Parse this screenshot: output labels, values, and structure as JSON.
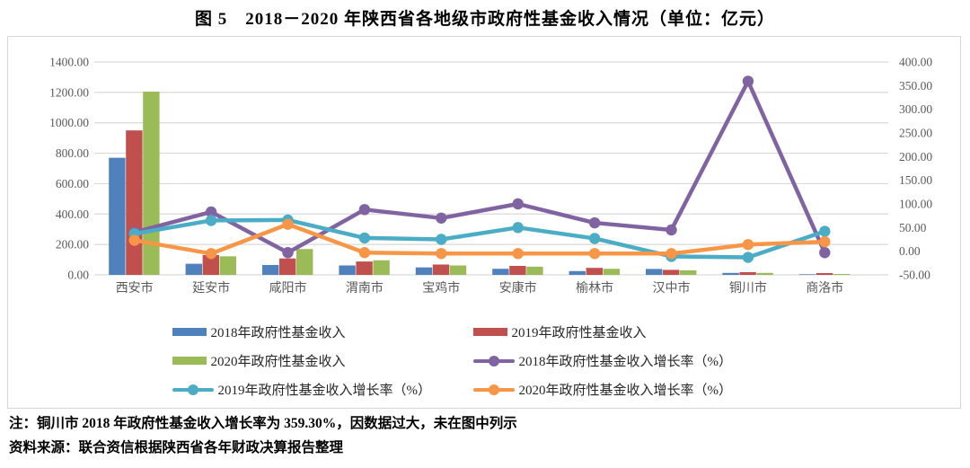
{
  "page": {
    "title": "图 5　2018－2020 年陕西省各地级市政府性基金收入情况（单位：亿元）",
    "note": "注：铜川市 2018 年政府性基金收入增长率为 359.30%，因数据过大，未在图中列示",
    "source": "资料来源：联合资信根据陕西省各年财政决算报告整理"
  },
  "chart_data": {
    "type": "bar",
    "subtype": "combo-bar-line-dual-axis",
    "title": "图 5　2018－2020 年陕西省各地级市政府性基金收入情况（单位：亿元）",
    "categories": [
      "西安市",
      "延安市",
      "咸阳市",
      "渭南市",
      "宝鸡市",
      "安康市",
      "榆林市",
      "汉中市",
      "铜川市",
      "商洛市"
    ],
    "grid": true,
    "legend_position": "bottom",
    "left_axis": {
      "min": 0,
      "max": 1400,
      "step": 200,
      "ticks": [
        "0.00",
        "200.00",
        "400.00",
        "600.00",
        "800.00",
        "1000.00",
        "1200.00",
        "1400.00"
      ]
    },
    "right_axis": {
      "min": -50,
      "max": 400,
      "step": 50,
      "ticks": [
        "-50.00",
        "0.00",
        "50.00",
        "100.00",
        "150.00",
        "200.00",
        "250.00",
        "300.00",
        "350.00",
        "400.00"
      ]
    },
    "bar_series": [
      {
        "name": "2018年政府性基金收入",
        "axis": "left",
        "color": "#4f81bd",
        "values": [
          770,
          73,
          65,
          62,
          49,
          40,
          25,
          39,
          13,
          4
        ]
      },
      {
        "name": "2019年政府性基金收入",
        "axis": "left",
        "color": "#c0504d",
        "values": [
          950,
          130,
          108,
          88,
          68,
          59,
          46,
          33,
          18,
          12
        ]
      },
      {
        "name": "2020年政府性基金收入",
        "axis": "left",
        "color": "#9bbb59",
        "values": [
          1205,
          122,
          170,
          96,
          62,
          54,
          40,
          30,
          13,
          6
        ]
      }
    ],
    "line_series": [
      {
        "name": "2018年政府性基金收入增长率（%）",
        "axis": "right",
        "color": "#8064a2",
        "values": [
          40,
          83,
          -3,
          88,
          70,
          100,
          60,
          45,
          359.3,
          -3
        ]
      },
      {
        "name": "2019年政府性基金收入增长率（%）",
        "axis": "right",
        "color": "#4bacc6",
        "values": [
          37,
          65,
          66,
          28,
          25,
          50,
          27,
          -11,
          -13,
          42
        ]
      },
      {
        "name": "2020年政府性基金收入增长率（%）",
        "axis": "right",
        "color": "#f79646",
        "values": [
          23,
          -5,
          57,
          -3,
          -5,
          -5,
          -5,
          -5,
          14,
          20
        ]
      }
    ],
    "annotation_colors": {
      "gridline": "#d9d9d9",
      "tick_label": "#595959"
    }
  }
}
